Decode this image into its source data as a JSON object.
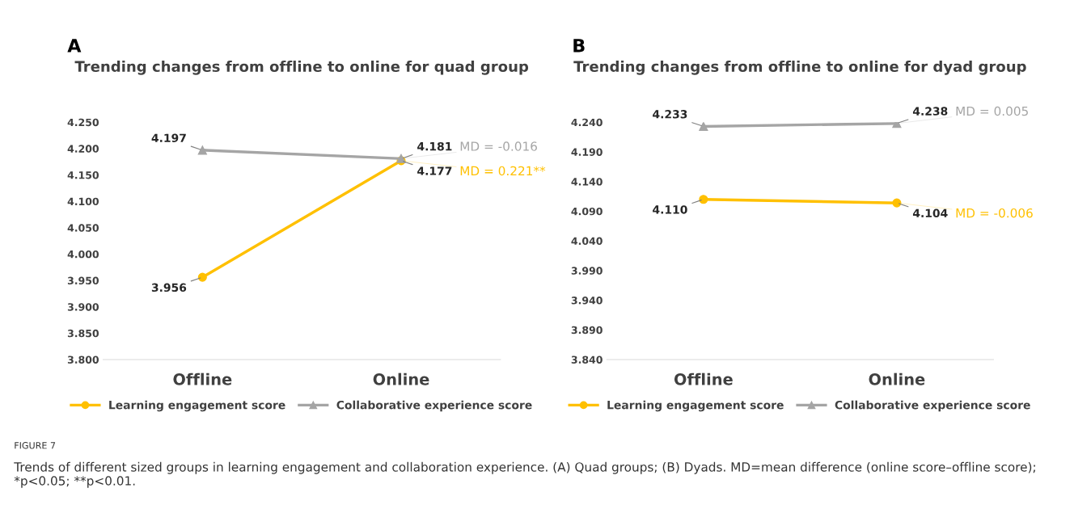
{
  "chart_data": [
    {
      "type": "line",
      "title": "Trending changes from offline to online for quad group",
      "categories": [
        "Offline",
        "Online"
      ],
      "ylim": [
        3.8,
        4.25
      ],
      "yticks": [
        {
          "value": 3.8,
          "label": "3.800"
        },
        {
          "value": 3.85,
          "label": "3.850"
        },
        {
          "value": 3.9,
          "label": "3.900"
        },
        {
          "value": 3.95,
          "label": "3.950"
        },
        {
          "value": 4.0,
          "label": "4.000"
        },
        {
          "value": 4.05,
          "label": "4.050"
        },
        {
          "value": 4.1,
          "label": "4.100"
        },
        {
          "value": 4.15,
          "label": "4.150"
        },
        {
          "value": 4.2,
          "label": "4.200"
        },
        {
          "value": 4.25,
          "label": "4.250"
        }
      ],
      "grid": false,
      "legend": "bottom",
      "series": [
        {
          "name": "Learning engagement score",
          "color": "#ffc000",
          "marker": "circle",
          "values": [
            3.956,
            4.177
          ],
          "value_labels": [
            "3.956",
            "4.177"
          ]
        },
        {
          "name": "Collaborative experience score",
          "color": "#a5a5a5",
          "marker": "triangle",
          "values": [
            4.197,
            4.181
          ],
          "value_labels": [
            "4.197",
            "4.181"
          ]
        }
      ],
      "annotations": [
        "A",
        {
          "text": "MD = -0.016",
          "x": "Online",
          "y": 4.181
        },
        {
          "text": "MD = 0.221**",
          "x": "Online",
          "y": 4.177
        },
        "FIGURE 7",
        "Trends of different sized groups in learning engagement and collaboration experience. (A) Quad groups; (B) Dyads. MD=mean difference (online score–offline score); *p<0.05; **p<0.01."
      ]
    },
    {
      "type": "line",
      "title": "Trending changes from offline to online for dyad group",
      "categories": [
        "Offline",
        "Online"
      ],
      "ylim": [
        3.84,
        4.24
      ],
      "yticks": [
        {
          "value": 3.84,
          "label": "3.840"
        },
        {
          "value": 3.89,
          "label": "3.890"
        },
        {
          "value": 3.94,
          "label": "3.940"
        },
        {
          "value": 3.99,
          "label": "3.990"
        },
        {
          "value": 4.04,
          "label": "4.040"
        },
        {
          "value": 4.09,
          "label": "4.090"
        },
        {
          "value": 4.14,
          "label": "4.140"
        },
        {
          "value": 4.19,
          "label": "4.190"
        },
        {
          "value": 4.24,
          "label": "4.240"
        }
      ],
      "grid": false,
      "legend": "bottom",
      "series": [
        {
          "name": "Learning engagement score",
          "color": "#ffc000",
          "marker": "circle",
          "values": [
            4.11,
            4.104
          ],
          "value_labels": [
            "4.110",
            "4.104"
          ]
        },
        {
          "name": "Collaborative experience score",
          "color": "#a5a5a5",
          "marker": "triangle",
          "values": [
            4.233,
            4.238
          ],
          "value_labels": [
            "4.233",
            "4.238"
          ]
        }
      ],
      "annotations": [
        "B",
        {
          "text": "MD = 0.005",
          "x": "Online",
          "y": 4.238
        },
        {
          "text": "MD = -0.006",
          "x": "Online",
          "y": 4.104
        }
      ]
    }
  ]
}
